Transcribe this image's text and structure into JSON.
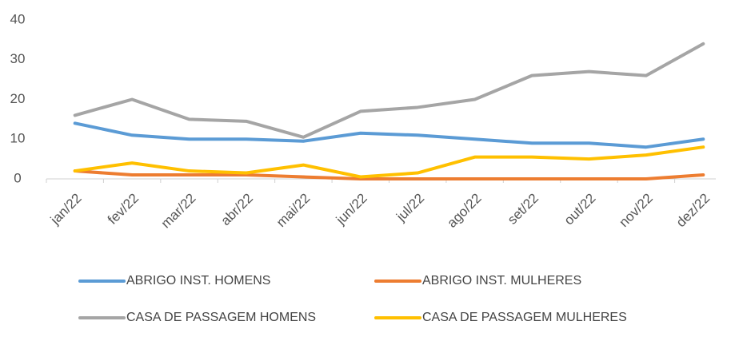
{
  "chart_data": {
    "type": "line",
    "categories": [
      "jan/22",
      "fev/22",
      "mar/22",
      "abr/22",
      "mai/22",
      "jun/22",
      "jul/22",
      "ago/22",
      "set/22",
      "out/22",
      "nov/22",
      "dez/22"
    ],
    "series": [
      {
        "name": "ABRIGO INST. HOMENS",
        "color": "#5b9bd5",
        "values": [
          14,
          11,
          10,
          10,
          9.5,
          11.5,
          11,
          10,
          9,
          9,
          8,
          10
        ]
      },
      {
        "name": "ABRIGO INST. MULHERES",
        "color": "#ed7d31",
        "values": [
          2,
          1,
          1,
          1,
          0.5,
          0,
          0,
          0,
          0,
          0,
          0,
          1
        ]
      },
      {
        "name": "CASA DE PASSAGEM HOMENS",
        "color": "#a5a5a5",
        "values": [
          16,
          20,
          15,
          14.5,
          10.5,
          17,
          18,
          20,
          26,
          27,
          26,
          34
        ]
      },
      {
        "name": "CASA DE PASSAGEM MULHERES",
        "color": "#ffc000",
        "values": [
          2,
          4,
          2,
          1.5,
          3.5,
          0.5,
          1.5,
          5.5,
          5.5,
          5,
          6,
          8
        ]
      }
    ],
    "ylim": [
      0,
      40
    ],
    "yticks": [
      0,
      10,
      20,
      30,
      40
    ],
    "grid": false
  }
}
